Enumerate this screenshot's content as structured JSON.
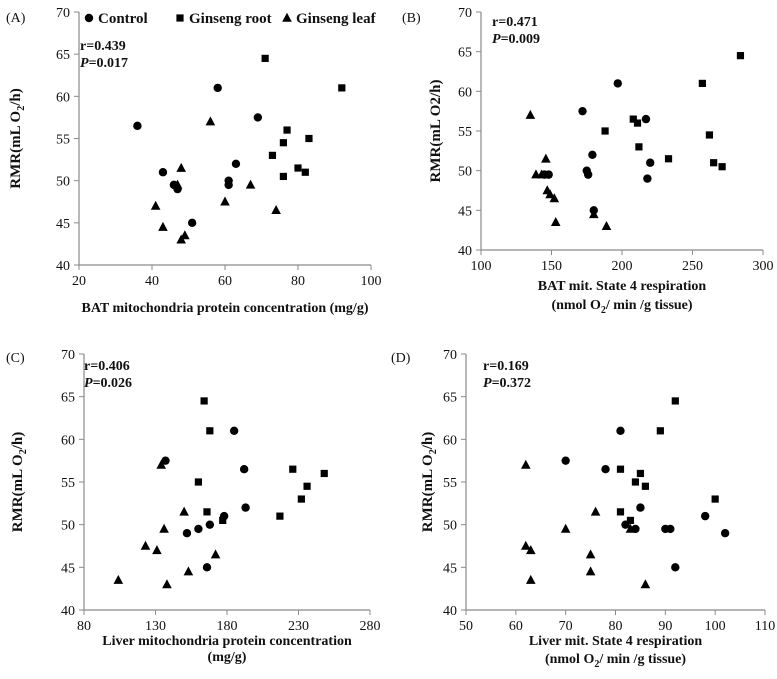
{
  "legend": [
    {
      "name": "Control",
      "marker": "circle"
    },
    {
      "name": "Ginseng root",
      "marker": "square"
    },
    {
      "name": "Ginseng leaf",
      "marker": "triangle"
    }
  ],
  "chart_data": [
    {
      "type": "scatter",
      "panel_label": "(A)",
      "xlabel": "BAT mitochondria protein concentration (mg/g)",
      "xlabel_lines": [
        "BAT mitochondria protein concentration (mg/g)"
      ],
      "ylabel": "RMR(mL O2/h)",
      "ylabel_main": "RMR(mL O",
      "ylabel_sub": "2",
      "ylabel_tail": "/h)",
      "xlim": [
        20,
        100
      ],
      "xticks": [
        20,
        40,
        60,
        80,
        100
      ],
      "xtick_labels": [
        "20",
        "40",
        "60",
        "80",
        "100"
      ],
      "ylim": [
        40,
        70
      ],
      "yticks": [
        40,
        45,
        50,
        55,
        60,
        65,
        70
      ],
      "ytick_labels": [
        "40",
        "45",
        "50",
        "55",
        "60",
        "65",
        "70"
      ],
      "stats": {
        "r": "r=0.439",
        "p_label": "P",
        "p_value": "=0.017"
      },
      "series": [
        {
          "name": "Control",
          "marker": "circle",
          "x": [
            36,
            43,
            46,
            47,
            51,
            58,
            61,
            61,
            63,
            69
          ],
          "y": [
            56.5,
            51,
            49.5,
            49,
            45,
            61,
            50,
            49.5,
            52,
            57.5
          ]
        },
        {
          "name": "Ginseng root",
          "marker": "square",
          "x": [
            71,
            73,
            76,
            76,
            77,
            80,
            82,
            83,
            92
          ],
          "y": [
            64.5,
            53,
            54.5,
            50.5,
            56,
            51.5,
            51,
            55,
            61
          ]
        },
        {
          "name": "Ginseng leaf",
          "marker": "triangle",
          "x": [
            41,
            43,
            47,
            48,
            48,
            49,
            56,
            60,
            67,
            74
          ],
          "y": [
            47,
            44.5,
            49.5,
            43,
            51.5,
            43.5,
            57,
            47.5,
            49.5,
            46.5
          ]
        }
      ]
    },
    {
      "type": "scatter",
      "panel_label": "(B)",
      "xlabel": "BAT mit. State 4 respiration (nmol O2/ min /g tissue)",
      "xlabel_lines": [
        "BAT mit. State 4 respiration",
        "(nmol O2/ min /g tissue)"
      ],
      "ylabel": "RMR(mL O2/h)",
      "ylabel_main": "RMR(mL O2/h)",
      "ylabel_sub": "",
      "ylabel_tail": "",
      "xlim": [
        100,
        300
      ],
      "xticks": [
        100,
        150,
        200,
        250,
        300
      ],
      "xtick_labels": [
        "100",
        "150",
        "200",
        "250",
        "300"
      ],
      "ylim": [
        40,
        70
      ],
      "yticks": [
        40,
        45,
        50,
        55,
        60,
        65,
        70
      ],
      "ytick_labels": [
        "40",
        "45",
        "50",
        "55",
        "60",
        "65",
        "70"
      ],
      "stats": {
        "r": "r=0.471",
        "p_label": "P",
        "p_value": "=0.009"
      },
      "series": [
        {
          "name": "Control",
          "marker": "circle",
          "x": [
            145,
            148,
            172,
            175,
            176,
            179,
            180,
            197,
            217,
            218,
            220
          ],
          "y": [
            49.5,
            49.5,
            57.5,
            50,
            49.5,
            52,
            45,
            61,
            56.5,
            49,
            51
          ]
        },
        {
          "name": "Ginseng root",
          "marker": "square",
          "x": [
            188,
            208,
            211,
            212,
            233,
            257,
            262,
            265,
            271,
            284
          ],
          "y": [
            55,
            56.5,
            56,
            53,
            51.5,
            61,
            54.5,
            51,
            50.5,
            64.5
          ]
        },
        {
          "name": "Ginseng leaf",
          "marker": "triangle",
          "x": [
            135,
            139,
            143,
            146,
            147,
            149,
            152,
            153,
            180,
            189
          ],
          "y": [
            57,
            49.5,
            49.5,
            51.5,
            47.5,
            47,
            46.5,
            43.5,
            44.5,
            43
          ]
        }
      ]
    },
    {
      "type": "scatter",
      "panel_label": "(C)",
      "xlabel": "Liver mitochondria protein concentration (mg/g)",
      "xlabel_lines": [
        "Liver mitochondria protein concentration",
        "(mg/g)"
      ],
      "ylabel": "RMR(mL O2/h)",
      "ylabel_main": "RMR(mL O",
      "ylabel_sub": "2",
      "ylabel_tail": "/h)",
      "xlim": [
        80,
        280
      ],
      "xticks": [
        80,
        130,
        180,
        230,
        280
      ],
      "xtick_labels": [
        "80",
        "130",
        "180",
        "230",
        "280"
      ],
      "ylim": [
        40,
        70
      ],
      "yticks": [
        40,
        45,
        50,
        55,
        60,
        65,
        70
      ],
      "ytick_labels": [
        "40",
        "45",
        "50",
        "55",
        "60",
        "65",
        "70"
      ],
      "stats": {
        "r": "r=0.406",
        "p_label": "P",
        "p_value": "=0.026"
      },
      "series": [
        {
          "name": "Control",
          "marker": "circle",
          "x": [
            137,
            152,
            160,
            166,
            168,
            178,
            185,
            192,
            193
          ],
          "y": [
            57.5,
            49,
            49.5,
            45,
            50,
            51,
            61,
            56.5,
            52
          ]
        },
        {
          "name": "Ginseng root",
          "marker": "square",
          "x": [
            160,
            164,
            166,
            168,
            177,
            217,
            226,
            232,
            236,
            248
          ],
          "y": [
            55,
            64.5,
            51.5,
            61,
            50.5,
            51,
            56.5,
            53,
            54.5,
            56
          ]
        },
        {
          "name": "Ginseng leaf",
          "marker": "triangle",
          "x": [
            104,
            123,
            131,
            134,
            136,
            138,
            150,
            153,
            172
          ],
          "y": [
            43.5,
            47.5,
            47,
            57,
            49.5,
            43,
            51.5,
            44.5,
            46.5
          ]
        }
      ]
    },
    {
      "type": "scatter",
      "panel_label": "(D)",
      "xlabel": "Liver mit. State 4 respiration (nmol O2/ min /g tissue)",
      "xlabel_lines": [
        "Liver mit. State 4 respiration",
        "(nmol O2/ min /g tissue)"
      ],
      "ylabel": "RMR(mL O2/h)",
      "ylabel_main": "RMR(mL O",
      "ylabel_sub": "2",
      "ylabel_tail": "/h)",
      "xlim": [
        50,
        110
      ],
      "xticks": [
        50,
        60,
        70,
        80,
        90,
        100,
        110
      ],
      "xtick_labels": [
        "50",
        "60",
        "70",
        "80",
        "90",
        "100",
        "110"
      ],
      "ylim": [
        40,
        70
      ],
      "yticks": [
        40,
        45,
        50,
        55,
        60,
        65,
        70
      ],
      "ytick_labels": [
        "40",
        "45",
        "50",
        "55",
        "60",
        "65",
        "70"
      ],
      "stats": {
        "r": "r=0.169",
        "p_label": "P",
        "p_value": "=0.372"
      },
      "series": [
        {
          "name": "Control",
          "marker": "circle",
          "x": [
            70,
            78,
            81,
            82,
            84,
            85,
            90,
            91,
            92,
            98,
            102
          ],
          "y": [
            57.5,
            56.5,
            61,
            50,
            49.5,
            52,
            49.5,
            49.5,
            45,
            51,
            49
          ]
        },
        {
          "name": "Ginseng root",
          "marker": "square",
          "x": [
            81,
            81,
            83,
            84,
            85,
            86,
            89,
            92,
            100
          ],
          "y": [
            51.5,
            56.5,
            50.5,
            55,
            56,
            54.5,
            61,
            64.5,
            53
          ]
        },
        {
          "name": "Ginseng leaf",
          "marker": "triangle",
          "x": [
            62,
            62,
            63,
            63,
            70,
            75,
            75,
            76,
            83,
            86
          ],
          "y": [
            57,
            47.5,
            47,
            43.5,
            49.5,
            46.5,
            44.5,
            51.5,
            49.5,
            43
          ]
        }
      ]
    }
  ]
}
